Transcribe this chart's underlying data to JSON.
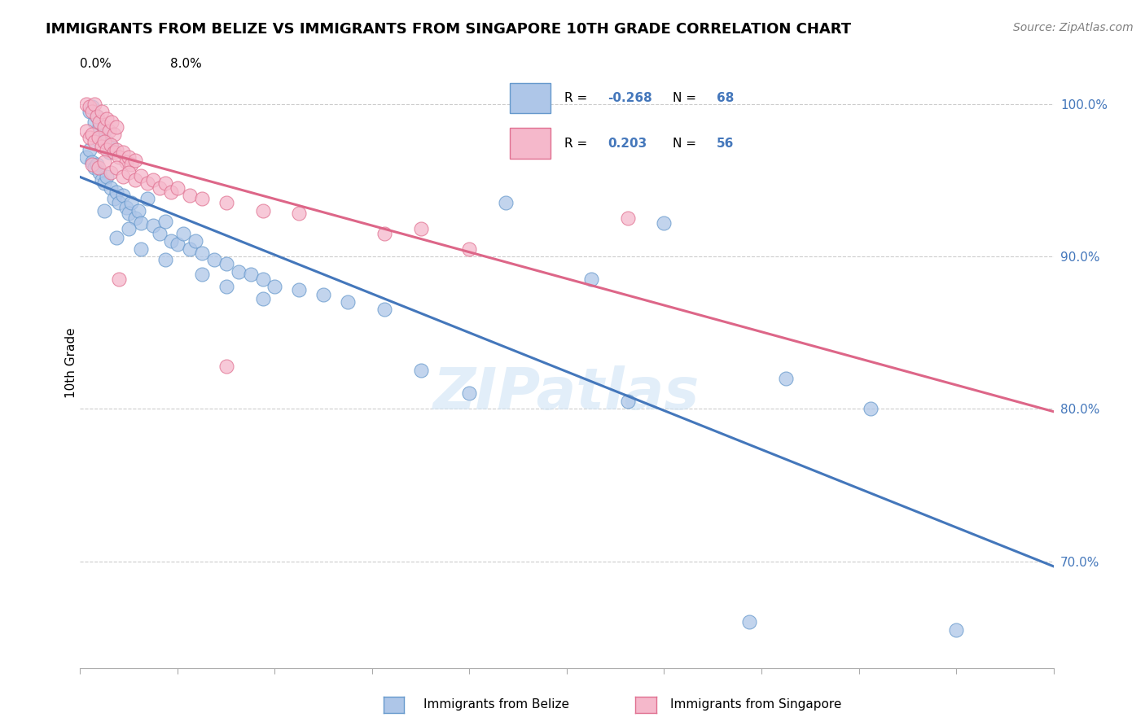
{
  "title": "IMMIGRANTS FROM BELIZE VS IMMIGRANTS FROM SINGAPORE 10TH GRADE CORRELATION CHART",
  "source": "Source: ZipAtlas.com",
  "ylabel": "10th Grade",
  "xmin": 0.0,
  "xmax": 8.0,
  "ymin": 63.0,
  "ymax": 103.0,
  "yticks": [
    70.0,
    80.0,
    90.0,
    100.0
  ],
  "belize_R": -0.268,
  "belize_N": 68,
  "singapore_R": 0.203,
  "singapore_N": 56,
  "belize_color": "#aec6e8",
  "singapore_color": "#f5b8cb",
  "belize_edge_color": "#6699cc",
  "singapore_edge_color": "#e07090",
  "belize_line_color": "#4477bb",
  "singapore_line_color": "#dd6688",
  "watermark": "ZIPatlas",
  "legend_belize": "Immigrants from Belize",
  "legend_singapore": "Immigrants from Singapore",
  "belize_points": [
    [
      0.08,
      99.5
    ],
    [
      0.1,
      99.8
    ],
    [
      0.12,
      98.8
    ],
    [
      0.14,
      99.2
    ],
    [
      0.16,
      98.5
    ],
    [
      0.18,
      97.8
    ],
    [
      0.2,
      98.2
    ],
    [
      0.22,
      97.5
    ],
    [
      0.24,
      96.8
    ],
    [
      0.26,
      97.2
    ],
    [
      0.05,
      96.5
    ],
    [
      0.08,
      97.0
    ],
    [
      0.1,
      96.2
    ],
    [
      0.12,
      95.8
    ],
    [
      0.14,
      96.0
    ],
    [
      0.16,
      95.5
    ],
    [
      0.18,
      95.0
    ],
    [
      0.2,
      94.8
    ],
    [
      0.22,
      95.2
    ],
    [
      0.25,
      94.5
    ],
    [
      0.28,
      93.8
    ],
    [
      0.3,
      94.2
    ],
    [
      0.32,
      93.5
    ],
    [
      0.35,
      94.0
    ],
    [
      0.38,
      93.2
    ],
    [
      0.4,
      92.8
    ],
    [
      0.42,
      93.5
    ],
    [
      0.45,
      92.5
    ],
    [
      0.48,
      93.0
    ],
    [
      0.5,
      92.2
    ],
    [
      0.55,
      93.8
    ],
    [
      0.6,
      92.0
    ],
    [
      0.65,
      91.5
    ],
    [
      0.7,
      92.3
    ],
    [
      0.75,
      91.0
    ],
    [
      0.8,
      90.8
    ],
    [
      0.85,
      91.5
    ],
    [
      0.9,
      90.5
    ],
    [
      0.95,
      91.0
    ],
    [
      1.0,
      90.2
    ],
    [
      1.1,
      89.8
    ],
    [
      1.2,
      89.5
    ],
    [
      1.3,
      89.0
    ],
    [
      1.4,
      88.8
    ],
    [
      1.5,
      88.5
    ],
    [
      1.6,
      88.0
    ],
    [
      1.8,
      87.8
    ],
    [
      2.0,
      87.5
    ],
    [
      2.2,
      87.0
    ],
    [
      2.5,
      86.5
    ],
    [
      0.3,
      91.2
    ],
    [
      0.5,
      90.5
    ],
    [
      0.7,
      89.8
    ],
    [
      1.0,
      88.8
    ],
    [
      1.2,
      88.0
    ],
    [
      1.5,
      87.2
    ],
    [
      0.2,
      93.0
    ],
    [
      0.4,
      91.8
    ],
    [
      3.5,
      93.5
    ],
    [
      4.8,
      92.2
    ],
    [
      4.2,
      88.5
    ],
    [
      2.8,
      82.5
    ],
    [
      3.2,
      81.0
    ],
    [
      5.5,
      66.0
    ],
    [
      4.5,
      80.5
    ],
    [
      5.8,
      82.0
    ],
    [
      6.5,
      80.0
    ],
    [
      7.2,
      65.5
    ]
  ],
  "singapore_points": [
    [
      0.05,
      100.0
    ],
    [
      0.08,
      99.8
    ],
    [
      0.1,
      99.5
    ],
    [
      0.12,
      100.0
    ],
    [
      0.14,
      99.2
    ],
    [
      0.16,
      98.8
    ],
    [
      0.18,
      99.5
    ],
    [
      0.2,
      98.5
    ],
    [
      0.22,
      99.0
    ],
    [
      0.24,
      98.2
    ],
    [
      0.26,
      98.8
    ],
    [
      0.28,
      98.0
    ],
    [
      0.3,
      98.5
    ],
    [
      0.05,
      98.2
    ],
    [
      0.08,
      97.8
    ],
    [
      0.1,
      98.0
    ],
    [
      0.12,
      97.5
    ],
    [
      0.15,
      97.8
    ],
    [
      0.18,
      97.2
    ],
    [
      0.2,
      97.5
    ],
    [
      0.22,
      97.0
    ],
    [
      0.25,
      97.3
    ],
    [
      0.28,
      96.8
    ],
    [
      0.3,
      97.0
    ],
    [
      0.32,
      96.5
    ],
    [
      0.35,
      96.8
    ],
    [
      0.38,
      96.2
    ],
    [
      0.4,
      96.5
    ],
    [
      0.42,
      96.0
    ],
    [
      0.45,
      96.3
    ],
    [
      0.1,
      96.0
    ],
    [
      0.15,
      95.8
    ],
    [
      0.2,
      96.2
    ],
    [
      0.25,
      95.5
    ],
    [
      0.3,
      95.8
    ],
    [
      0.35,
      95.2
    ],
    [
      0.4,
      95.5
    ],
    [
      0.45,
      95.0
    ],
    [
      0.5,
      95.3
    ],
    [
      0.55,
      94.8
    ],
    [
      0.6,
      95.0
    ],
    [
      0.65,
      94.5
    ],
    [
      0.7,
      94.8
    ],
    [
      0.75,
      94.2
    ],
    [
      0.8,
      94.5
    ],
    [
      0.9,
      94.0
    ],
    [
      1.0,
      93.8
    ],
    [
      1.2,
      93.5
    ],
    [
      1.5,
      93.0
    ],
    [
      1.8,
      92.8
    ],
    [
      2.5,
      91.5
    ],
    [
      3.2,
      90.5
    ],
    [
      1.2,
      82.8
    ],
    [
      2.8,
      91.8
    ],
    [
      4.5,
      92.5
    ],
    [
      0.32,
      88.5
    ]
  ]
}
